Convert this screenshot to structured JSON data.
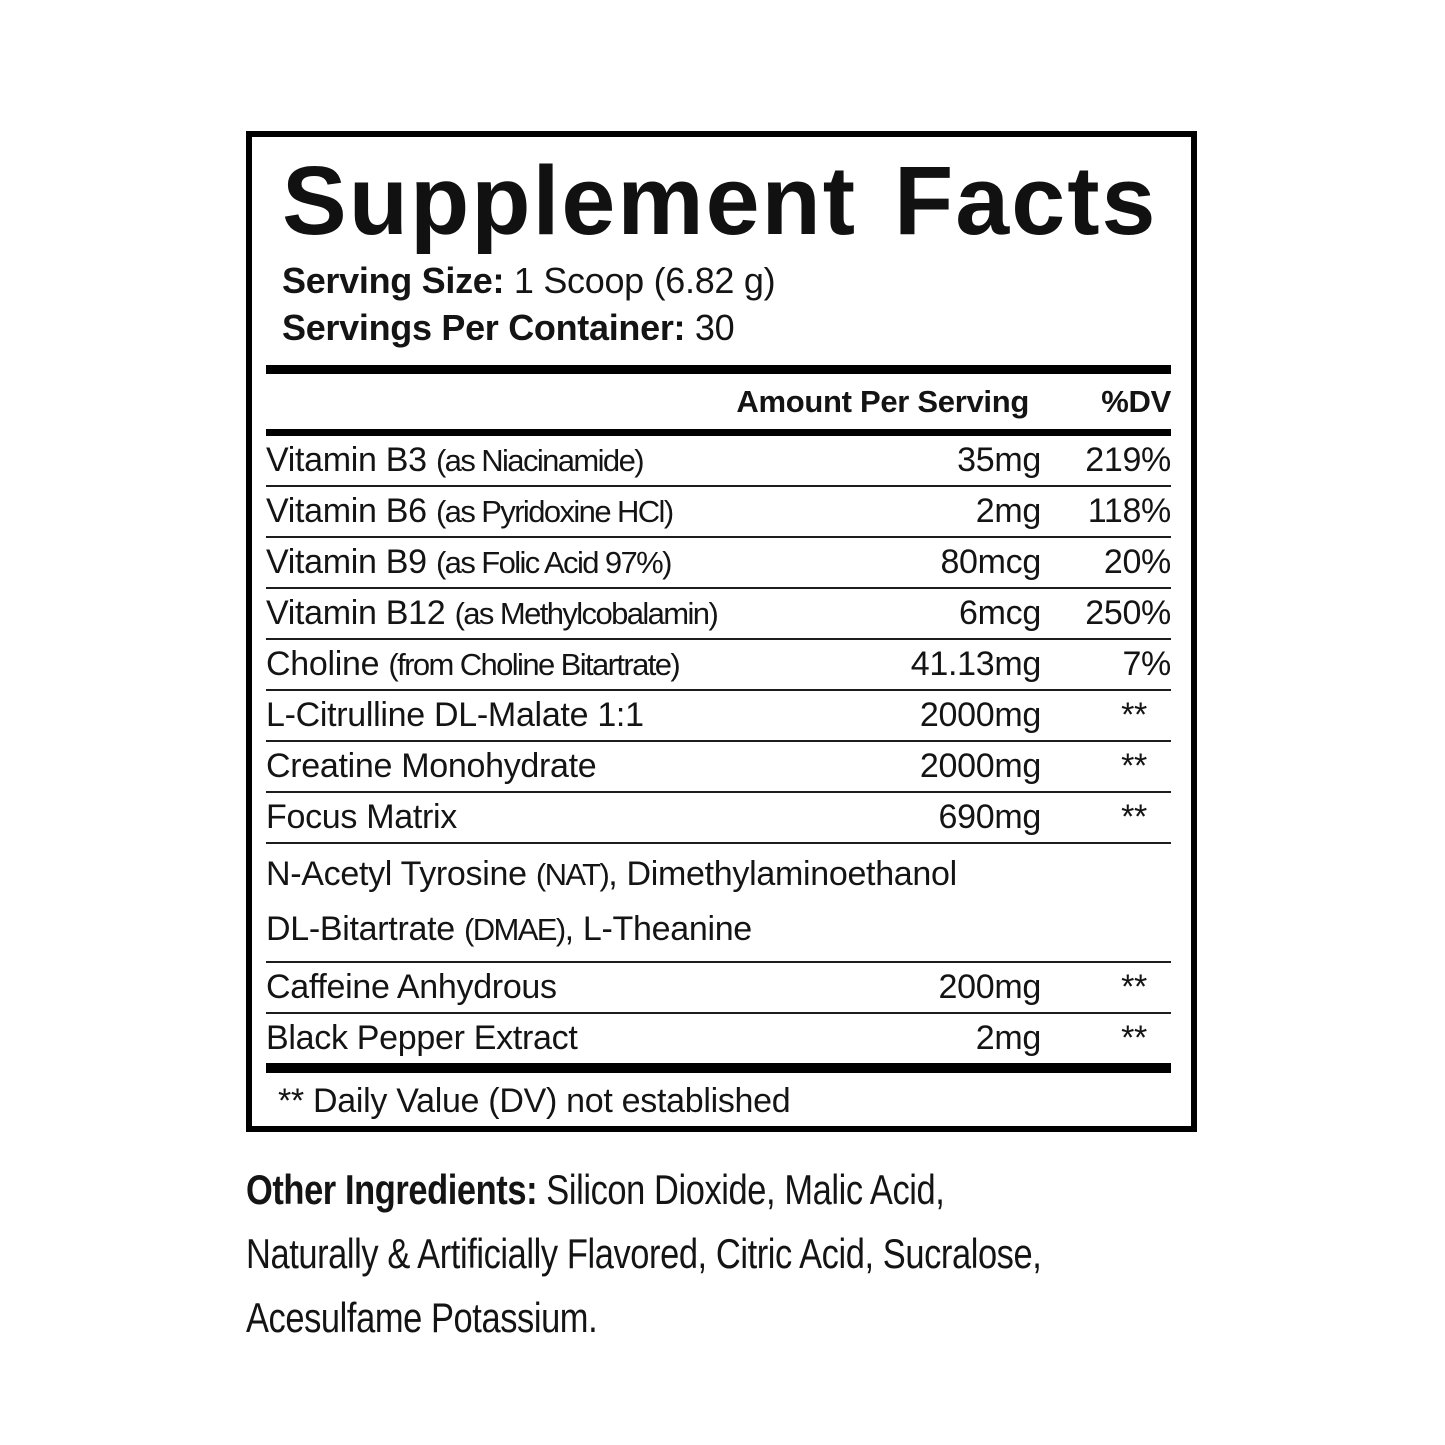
{
  "label": {
    "title": "Supplement Facts",
    "serving_size_label": "Serving Size:",
    "serving_size_value": "1 Scoop (6.82 g)",
    "servings_label": "Servings Per Container:",
    "servings_value": "30"
  },
  "table": {
    "amount_header": "Amount Per Serving",
    "dv_header": "%DV",
    "rows": [
      {
        "name": "Vitamin B3",
        "sub": "(as Niacinamide)",
        "amount": "35mg",
        "dv": "219%"
      },
      {
        "name": "Vitamin B6",
        "sub": "(as Pyridoxine HCl)",
        "amount": "2mg",
        "dv": "118%"
      },
      {
        "name": "Vitamin B9",
        "sub": "(as Folic Acid 97%)",
        "amount": "80mcg",
        "dv": "20%"
      },
      {
        "name": "Vitamin B12",
        "sub": "(as Methylcobalamin)",
        "amount": "6mcg",
        "dv": "250%"
      },
      {
        "name": "Choline",
        "sub": "(from Choline Bitartrate)",
        "amount": "41.13mg",
        "dv": "7%"
      },
      {
        "name": "L-Citrulline DL-Malate 1:1",
        "sub": "",
        "amount": "2000mg",
        "dv": "**"
      },
      {
        "name": "Creatine Monohydrate",
        "sub": "",
        "amount": "2000mg",
        "dv": "**"
      },
      {
        "name": "Focus Matrix",
        "sub": "",
        "amount": "690mg",
        "dv": "**"
      },
      {
        "name": "Caffeine Anhydrous",
        "sub": "",
        "amount": "200mg",
        "dv": "**"
      },
      {
        "name": "Black Pepper Extract",
        "sub": "",
        "amount": "2mg",
        "dv": "**"
      }
    ],
    "blend_description": {
      "line1_pre": "N-Acetyl Tyrosine ",
      "line1_paren": "(NAT)",
      "line1_post": ", Dimethylaminoethanol",
      "line2_pre": "DL-Bitartrate ",
      "line2_paren": "(DMAE)",
      "line2_post": ", L-Theanine"
    },
    "footnote": "** Daily Value (DV) not established"
  },
  "other_ingredients": {
    "label": "Other Ingredients:",
    "line1_rest": "Silicon Dioxide, Malic Acid,",
    "line2": "Naturally & Artificially Flavored, Citric Acid, Sucralose,",
    "line3": "Acesulfame Potassium."
  }
}
